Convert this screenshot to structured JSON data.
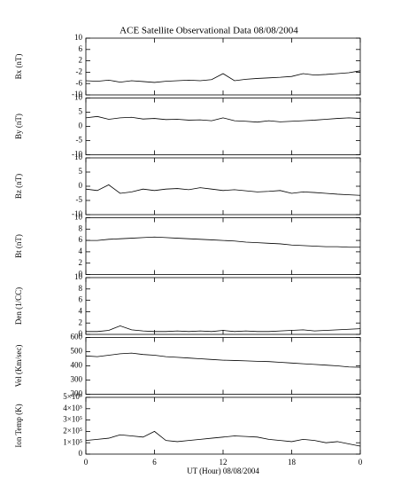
{
  "chart_data": [
    {
      "type": "line",
      "title": "ACE Satellite Observational Data   08/08/2004",
      "y_label": "Bx (nT)",
      "color": "#000000",
      "x": [
        0,
        1,
        2,
        3,
        4,
        5,
        6,
        7,
        8,
        9,
        10,
        11,
        12,
        13,
        14,
        15,
        16,
        17,
        18,
        19,
        20,
        21,
        22,
        23,
        24
      ],
      "values": [
        -5,
        -5.2,
        -4.8,
        -5.5,
        -5,
        -5.3,
        -5.6,
        -5.2,
        -5,
        -4.8,
        -5,
        -4.6,
        -2.5,
        -5,
        -4.5,
        -4.2,
        -4,
        -3.8,
        -3.5,
        -2.5,
        -3,
        -2.8,
        -2.5,
        -2.2,
        -1.5
      ],
      "ylim": [
        -10,
        10
      ],
      "yticks": [
        -10,
        -6,
        -2,
        2,
        6,
        10
      ]
    },
    {
      "type": "line",
      "y_label": "By (nT)",
      "color": "#000000",
      "x": [
        0,
        1,
        2,
        3,
        4,
        5,
        6,
        7,
        8,
        9,
        10,
        11,
        12,
        13,
        14,
        15,
        16,
        17,
        18,
        19,
        20,
        21,
        22,
        23,
        24
      ],
      "values": [
        3,
        3.5,
        2.5,
        3,
        3.2,
        2.6,
        2.8,
        2.4,
        2.5,
        2.2,
        2.3,
        2,
        3,
        2,
        1.8,
        1.5,
        2,
        1.6,
        1.8,
        2,
        2.2,
        2.5,
        2.8,
        3,
        2.8
      ],
      "ylim": [
        -10,
        10
      ],
      "yticks": [
        -10,
        -5,
        0,
        5,
        10
      ]
    },
    {
      "type": "line",
      "y_label": "Bz (nT)",
      "color": "#000000",
      "x": [
        0,
        1,
        2,
        3,
        4,
        5,
        6,
        7,
        8,
        9,
        10,
        11,
        12,
        13,
        14,
        15,
        16,
        17,
        18,
        19,
        20,
        21,
        22,
        23,
        24
      ],
      "values": [
        -1,
        -1.5,
        0.5,
        -2.5,
        -2,
        -1,
        -1.5,
        -1,
        -0.8,
        -1.2,
        -0.5,
        -1,
        -1.5,
        -1.2,
        -1.6,
        -2,
        -1.8,
        -1.5,
        -2.5,
        -2,
        -2.2,
        -2.5,
        -2.8,
        -3,
        -3.2
      ],
      "ylim": [
        -10,
        10
      ],
      "yticks": [
        -10,
        -5,
        0,
        5,
        10
      ]
    },
    {
      "type": "line",
      "y_label": "Bt (nT)",
      "color": "#000000",
      "x": [
        0,
        1,
        2,
        3,
        4,
        5,
        6,
        7,
        8,
        9,
        10,
        11,
        12,
        13,
        14,
        15,
        16,
        17,
        18,
        19,
        20,
        21,
        22,
        23,
        24
      ],
      "values": [
        6,
        6,
        6.2,
        6.3,
        6.4,
        6.5,
        6.6,
        6.5,
        6.4,
        6.3,
        6.2,
        6.1,
        6,
        5.9,
        5.7,
        5.6,
        5.5,
        5.4,
        5.2,
        5.1,
        5,
        4.9,
        4.9,
        4.8,
        4.8
      ],
      "ylim": [
        0,
        10
      ],
      "yticks": [
        0,
        2,
        4,
        6,
        8,
        10
      ]
    },
    {
      "type": "line",
      "y_label": "Den (1/CC)",
      "color": "#000000",
      "x": [
        0,
        1,
        2,
        3,
        4,
        5,
        6,
        7,
        8,
        9,
        10,
        11,
        12,
        13,
        14,
        15,
        16,
        17,
        18,
        19,
        20,
        21,
        22,
        23,
        24
      ],
      "values": [
        0.5,
        0.5,
        0.7,
        1.5,
        0.8,
        0.6,
        0.5,
        0.5,
        0.6,
        0.5,
        0.6,
        0.5,
        0.7,
        0.5,
        0.6,
        0.5,
        0.5,
        0.6,
        0.7,
        0.8,
        0.6,
        0.7,
        0.8,
        0.9,
        1
      ],
      "ylim": [
        0,
        10
      ],
      "yticks": [
        0,
        2,
        4,
        6,
        8,
        10
      ]
    },
    {
      "type": "line",
      "y_label": "Vel (Km/sec)",
      "color": "#000000",
      "x": [
        0,
        1,
        2,
        3,
        4,
        5,
        6,
        7,
        8,
        9,
        10,
        11,
        12,
        13,
        14,
        15,
        16,
        17,
        18,
        19,
        20,
        21,
        22,
        23,
        24
      ],
      "values": [
        470,
        465,
        475,
        485,
        490,
        480,
        475,
        465,
        460,
        455,
        450,
        445,
        440,
        438,
        435,
        432,
        430,
        425,
        420,
        415,
        410,
        405,
        400,
        392,
        390
      ],
      "ylim": [
        200,
        600
      ],
      "yticks": [
        200,
        300,
        400,
        500,
        600
      ]
    },
    {
      "type": "line",
      "y_label": "Ion Temp (K)",
      "x_label": "UT (Hour)  08/08/2004",
      "color": "#000000",
      "x": [
        0,
        1,
        2,
        3,
        4,
        5,
        6,
        7,
        8,
        9,
        10,
        11,
        12,
        13,
        14,
        15,
        16,
        17,
        18,
        19,
        20,
        21,
        22,
        23,
        24
      ],
      "values": [
        120000,
        130000,
        140000,
        170000,
        160000,
        150000,
        200000,
        120000,
        110000,
        120000,
        130000,
        140000,
        150000,
        160000,
        155000,
        150000,
        130000,
        120000,
        110000,
        130000,
        120000,
        100000,
        110000,
        90000,
        70000
      ],
      "ylim": [
        0,
        500000
      ],
      "yticks": [
        0,
        {
          "value": 100000,
          "label": "1×10⁵"
        },
        {
          "value": 200000,
          "label": "2×10⁵"
        },
        {
          "value": 300000,
          "label": "3×10⁵"
        },
        {
          "value": 400000,
          "label": "4×10⁵"
        },
        {
          "value": 500000,
          "label": "5×10⁵"
        }
      ],
      "xlim": [
        0,
        24
      ],
      "xticks": [
        0,
        6,
        12,
        18,
        {
          "value": 24,
          "label": "0"
        }
      ]
    }
  ]
}
